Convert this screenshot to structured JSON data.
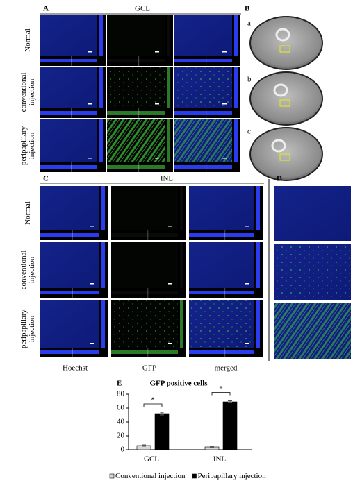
{
  "panels": {
    "A": {
      "label": "A",
      "title": "GCL",
      "rows": [
        "Normal",
        "conventional injection",
        "peripapillary injection"
      ]
    },
    "B": {
      "label": "B",
      "subpanels": [
        "a",
        "b",
        "c"
      ]
    },
    "C": {
      "label": "C",
      "title": "INL",
      "rows": [
        "Normal",
        "conventional injection",
        "peripapillary injection"
      ],
      "columns": [
        "Hoechst",
        "GFP",
        "merged"
      ]
    },
    "D": {
      "label": "D"
    },
    "E": {
      "label": "E"
    }
  },
  "chart_data": {
    "type": "bar",
    "title": "GFP positive cells",
    "categories": [
      "GCL",
      "INL"
    ],
    "series": [
      {
        "name": "Conventional injection",
        "color": "#d9d9d9",
        "values": [
          6,
          4
        ],
        "errors": [
          1,
          1
        ]
      },
      {
        "name": "Peripapillary injection",
        "color": "#000000",
        "values": [
          52,
          69
        ],
        "errors": [
          2,
          1.5
        ]
      }
    ],
    "annotations": [
      "*",
      "*"
    ],
    "ylim": [
      0,
      80
    ],
    "yticks": [
      0,
      20,
      40,
      60,
      80
    ],
    "legend": "bottom"
  }
}
